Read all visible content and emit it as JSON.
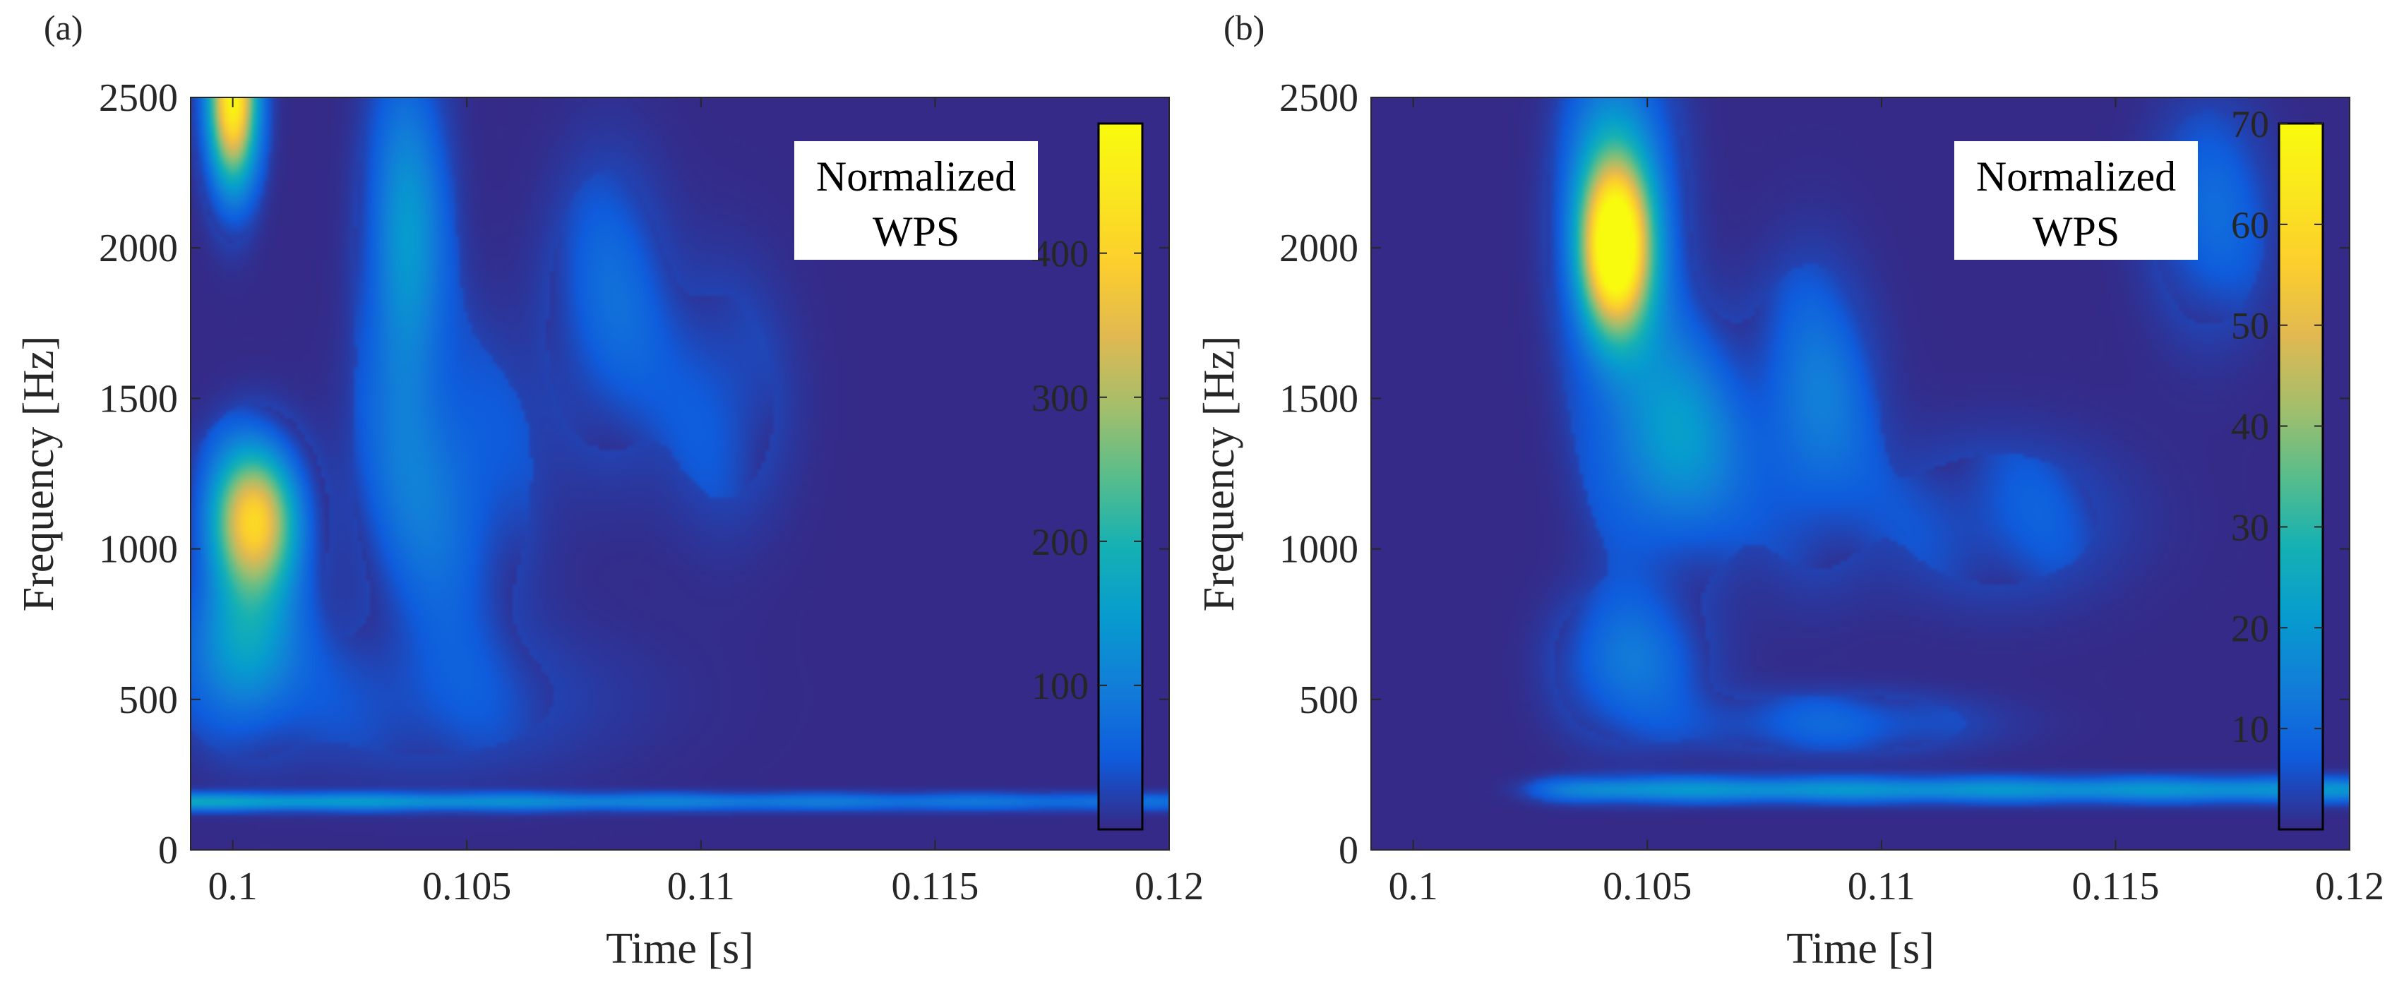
{
  "chart_data": [
    {
      "panel_label": "(a)",
      "type": "heatmap",
      "xlabel": "Time [s]",
      "ylabel": "Frequency [Hz]",
      "xlim": [
        0.0991,
        0.12
      ],
      "ylim": [
        0,
        2500
      ],
      "xticks": [
        0.1,
        0.105,
        0.11,
        0.115,
        0.12
      ],
      "xtick_labels": [
        "0.1",
        "0.105",
        "0.11",
        "0.115",
        "0.12"
      ],
      "yticks": [
        0,
        500,
        1000,
        1500,
        2000,
        2500
      ],
      "ytick_labels": [
        "0",
        "500",
        "1000",
        "1500",
        "2000",
        "2500"
      ],
      "colorbar": {
        "title_line1": "Normalized",
        "title_line2": "WPS",
        "range": [
          0,
          490
        ],
        "ticks": [
          100,
          200,
          300,
          400
        ],
        "tick_labels": [
          "100",
          "200",
          "300",
          "400"
        ],
        "colormap": "parula"
      },
      "features": [
        {
          "t": 0.1,
          "f": 2450,
          "value": 470
        },
        {
          "t": 0.1004,
          "f": 1100,
          "value": 380
        },
        {
          "t": 0.1035,
          "f": 2000,
          "value": 180
        },
        {
          "t": 0.108,
          "f": 1800,
          "value": 90
        },
        {
          "t": 0.1105,
          "f": 1550,
          "value": 60
        },
        {
          "t": 0.11,
          "f": 160,
          "value": 140
        }
      ]
    },
    {
      "panel_label": "(b)",
      "type": "heatmap",
      "xlabel": "Time [s]",
      "ylabel": "Frequency [Hz]",
      "xlim": [
        0.0991,
        0.12
      ],
      "ylim": [
        0,
        2500
      ],
      "xticks": [
        0.1,
        0.105,
        0.11,
        0.115,
        0.12
      ],
      "xtick_labels": [
        "0.1",
        "0.105",
        "0.11",
        "0.115",
        "0.12"
      ],
      "yticks": [
        0,
        500,
        1000,
        1500,
        2000,
        2500
      ],
      "ytick_labels": [
        "0",
        "500",
        "1000",
        "1500",
        "2000",
        "2500"
      ],
      "colorbar": {
        "title_line1": "Normalized",
        "title_line2": "WPS",
        "range": [
          0,
          70
        ],
        "ticks": [
          10,
          20,
          30,
          40,
          50,
          60,
          70
        ],
        "tick_labels": [
          "10",
          "20",
          "30",
          "40",
          "50",
          "60",
          "70"
        ],
        "colormap": "parula"
      },
      "features": [
        {
          "t": 0.1043,
          "f": 2000,
          "value": 66
        },
        {
          "t": 0.1055,
          "f": 1300,
          "value": 25
        },
        {
          "t": 0.1085,
          "f": 1450,
          "value": 14
        },
        {
          "t": 0.1045,
          "f": 600,
          "value": 12
        },
        {
          "t": 0.112,
          "f": 200,
          "value": 20
        },
        {
          "t": 0.117,
          "f": 2100,
          "value": 10
        }
      ]
    }
  ]
}
